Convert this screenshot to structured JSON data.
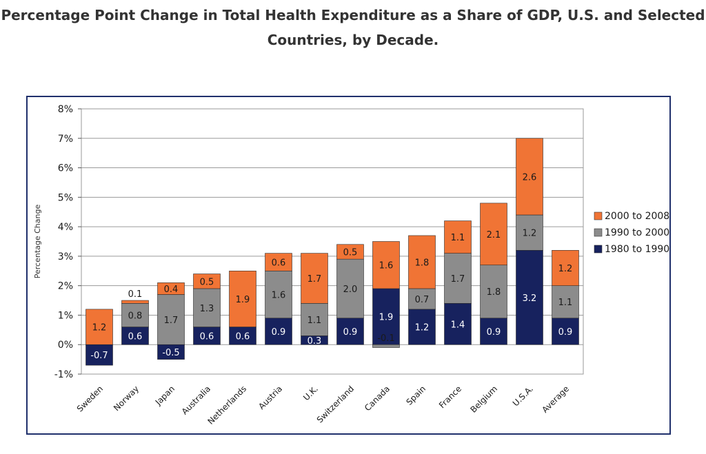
{
  "page": {
    "title_line1": "Percentage Point Change in Total Health Expenditure as a Share of GDP, U.S. and Selected",
    "title_line2": "Countries, by Decade."
  },
  "chart_data": {
    "type": "bar",
    "stacked": true,
    "title": "Percentage Point Change in Total Health Expenditure as a Share of GDP, U.S. and Selected Countries, by Decade.",
    "xlabel": "",
    "ylabel": "Percentage Change",
    "ylim": [
      -1,
      8
    ],
    "y_ticks": [
      -1,
      0,
      1,
      2,
      3,
      4,
      5,
      6,
      7,
      8
    ],
    "y_tick_format": "%",
    "grid": true,
    "legend_position": "right",
    "categories": [
      "Sweden",
      "Norway",
      "Japan",
      "Australia",
      "Netherlands",
      "Austria",
      "U.K.",
      "Switzerland",
      "Canada",
      "Spain",
      "France",
      "Belgium",
      "U.S.A.",
      "Average"
    ],
    "series": [
      {
        "name": "1980 to 1990",
        "color": "#17225e",
        "values": [
          -0.7,
          0.6,
          -0.5,
          0.6,
          0.6,
          0.9,
          0.3,
          0.9,
          1.9,
          1.2,
          1.4,
          0.9,
          3.2,
          0.9
        ],
        "labels": [
          "-0.7",
          "0.6",
          "-0.5",
          "0.6",
          "0.6",
          "0.9",
          "0.3",
          "0.9",
          "1.9",
          "1.2",
          "1.4",
          "0.9",
          "3.2",
          "0.9"
        ]
      },
      {
        "name": "1990 to 2000",
        "color": "#8c8c8c",
        "values": [
          0.0,
          0.8,
          1.7,
          1.3,
          0.0,
          1.6,
          1.1,
          2.0,
          -0.1,
          0.7,
          1.7,
          1.8,
          1.2,
          1.1
        ],
        "labels": [
          "",
          "0.8",
          "1.7",
          "1.3",
          "",
          "1.6",
          "1.1",
          "2.0",
          "-0.1",
          "0.7",
          "1.7",
          "1.8",
          "1.2",
          "1.1"
        ]
      },
      {
        "name": "2000 to 2008",
        "color": "#f07435",
        "values": [
          1.2,
          0.1,
          0.4,
          0.5,
          1.9,
          0.6,
          1.7,
          0.5,
          1.6,
          1.8,
          1.1,
          2.1,
          2.6,
          1.2
        ],
        "labels": [
          "1.2",
          "0.1",
          "0.4",
          "0.5",
          "1.9",
          "0.6",
          "1.7",
          "0.5",
          "1.6",
          "1.8",
          "1.1",
          "2.1",
          "2.6",
          "1.2"
        ]
      }
    ],
    "legend_order": [
      "2000 to 2008",
      "1990 to 2000",
      "1980 to 1990"
    ]
  }
}
